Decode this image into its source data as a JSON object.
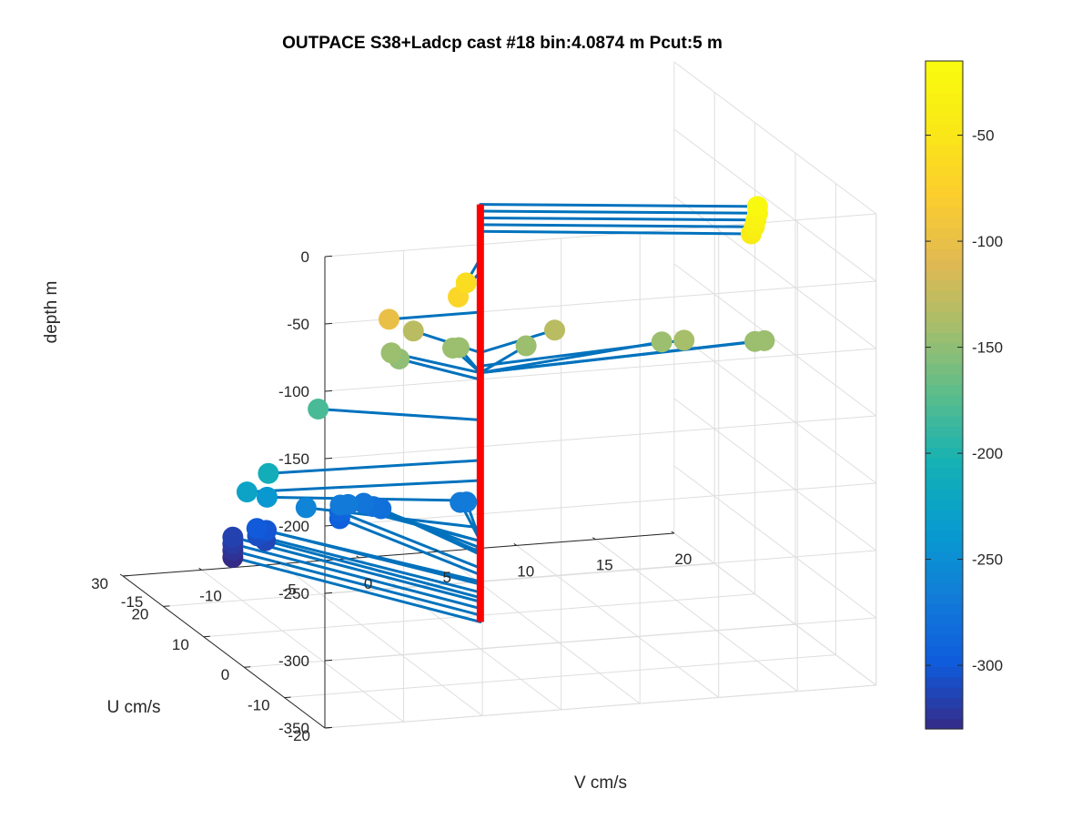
{
  "chart_data": {
    "type": "scatter3d",
    "title": "OUTPACE S38+Ladcp cast #18 bin:4.0874 m  Pcut:5 m",
    "xlabel": "V cm/s",
    "ylabel": "U cm/s",
    "zlabel": "depth m",
    "xlim": [
      -15,
      20
    ],
    "ylim": [
      -20,
      30
    ],
    "zlim": [
      -350,
      0
    ],
    "xticks": [
      "-15",
      "-10",
      "-5",
      "0",
      "5",
      "10",
      "15",
      "20"
    ],
    "yticks": [
      "-20",
      "-10",
      "0",
      "10",
      "20",
      "30"
    ],
    "zticks": [
      "0",
      "-50",
      "-100",
      "-150",
      "-200",
      "-250",
      "-300",
      "-350"
    ],
    "grid": true,
    "colorbar": {
      "colormap": "parula",
      "range": [
        -330,
        -15
      ],
      "ticks": [
        "-50",
        "-100",
        "-150",
        "-200",
        "-250",
        "-300"
      ]
    },
    "profile_line_color": "#ff0000",
    "vector_color": "#0072bd",
    "points": [
      {
        "v": 15.8,
        "u": -7,
        "depth": -20
      },
      {
        "v": 15.8,
        "u": -7,
        "depth": -25
      },
      {
        "v": 15.7,
        "u": -7,
        "depth": -30
      },
      {
        "v": 15.6,
        "u": -7,
        "depth": -35
      },
      {
        "v": 15.4,
        "u": -7,
        "depth": -40
      },
      {
        "v": -2.7,
        "u": -7,
        "depth": -60
      },
      {
        "v": -3.2,
        "u": -7,
        "depth": -70
      },
      {
        "v": -5.8,
        "u": 0,
        "depth": -100
      },
      {
        "v": -2.2,
        "u": 8,
        "depth": -130
      },
      {
        "v": 6,
        "u": 5,
        "depth": -130
      },
      {
        "v": 13.7,
        "u": 3,
        "depth": -140
      },
      {
        "v": 18.2,
        "u": 3,
        "depth": -145
      },
      {
        "v": 18.8,
        "u": 3,
        "depth": -145
      },
      {
        "v": 12.8,
        "u": 5,
        "depth": -145
      },
      {
        "v": 4.7,
        "u": 7,
        "depth": -145
      },
      {
        "v": 0.7,
        "u": 8,
        "depth": -145
      },
      {
        "v": 0.3,
        "u": 8,
        "depth": -145
      },
      {
        "v": -3.6,
        "u": 8,
        "depth": -145
      },
      {
        "v": -3.1,
        "u": 8,
        "depth": -150
      },
      {
        "v": -8.5,
        "u": 7,
        "depth": -180
      },
      {
        "v": -13.2,
        "u": 1,
        "depth": -210
      },
      {
        "v": -14.3,
        "u": 2,
        "depth": -225
      },
      {
        "v": -12,
        "u": 6,
        "depth": -240
      },
      {
        "v": -8.5,
        "u": 10,
        "depth": -260
      },
      {
        "v": -5.3,
        "u": 14,
        "depth": -270
      },
      {
        "v": -4.8,
        "u": 14,
        "depth": -270
      },
      {
        "v": -3.3,
        "u": 16,
        "depth": -275
      },
      {
        "v": -2.7,
        "u": 16,
        "depth": -278
      },
      {
        "v": -2.2,
        "u": 16,
        "depth": -280
      },
      {
        "v": 1.8,
        "u": 12,
        "depth": -270
      },
      {
        "v": 2.2,
        "u": 12,
        "depth": -270
      },
      {
        "v": -3.8,
        "u": 20,
        "depth": -290
      },
      {
        "v": -3.8,
        "u": 20,
        "depth": -295
      },
      {
        "v": -8.8,
        "u": 21,
        "depth": -300
      },
      {
        "v": -8.2,
        "u": 21,
        "depth": -302
      },
      {
        "v": -8.5,
        "u": 22,
        "depth": -308
      },
      {
        "v": -8,
        "u": 22,
        "depth": -312
      },
      {
        "v": -9.3,
        "u": 25,
        "depth": -315
      },
      {
        "v": -9.3,
        "u": 25,
        "depth": -320
      },
      {
        "v": -9.3,
        "u": 25,
        "depth": -325
      },
      {
        "v": -9.3,
        "u": 25,
        "depth": -330
      }
    ]
  }
}
